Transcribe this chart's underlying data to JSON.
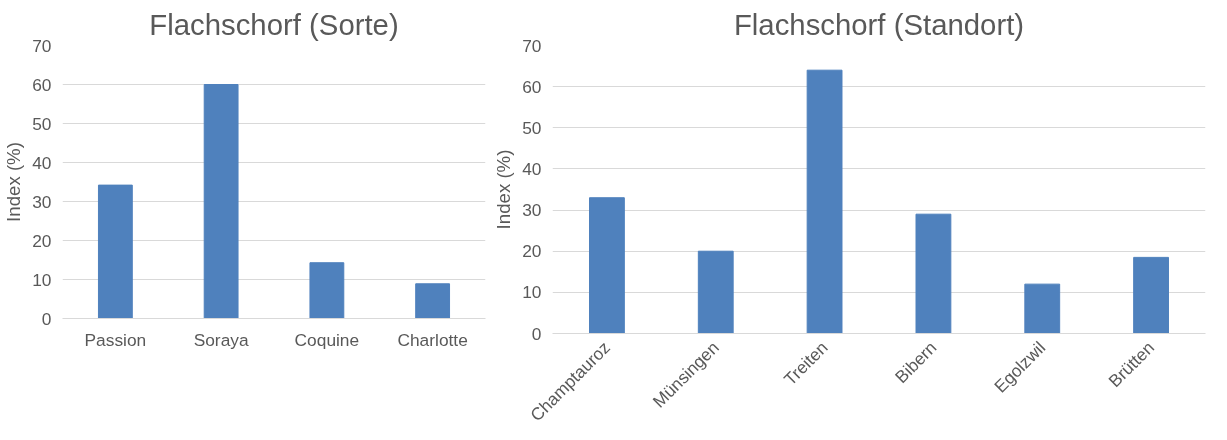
{
  "chart_data": [
    {
      "type": "bar",
      "title": "Flachschorf (Sorte)",
      "ylabel": "Index (%)",
      "categories": [
        "Passion",
        "Soraya",
        "Coquine",
        "Charlotte"
      ],
      "values": [
        34.2,
        60,
        14.3,
        8.9
      ],
      "color": "#4f81bd",
      "ylim": [
        0,
        70
      ],
      "yticks": [
        0,
        10,
        20,
        30,
        40,
        50,
        60,
        70
      ],
      "grid": "y"
    },
    {
      "type": "bar",
      "title": "Flachschorf (Standort)",
      "ylabel": "Index (%)",
      "categories": [
        "Champtauroz",
        "Münsingen",
        "Treiten",
        "Bibern",
        "Egolzwil",
        "Brütten"
      ],
      "values": [
        33,
        20,
        64,
        29,
        12,
        18.5
      ],
      "color": "#4f81bd",
      "ylim": [
        0,
        70
      ],
      "yticks": [
        0,
        10,
        20,
        30,
        40,
        50,
        60,
        70
      ],
      "grid": "y"
    }
  ]
}
